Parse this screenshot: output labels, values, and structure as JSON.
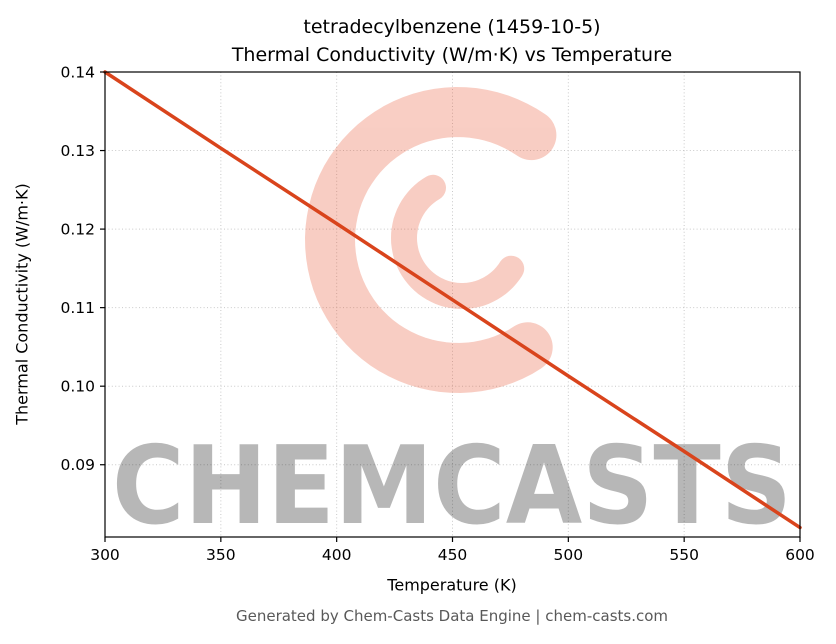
{
  "chart_data": {
    "type": "line",
    "title": "tetradecylbenzene (1459-10-5)",
    "subtitle": "Thermal Conductivity (W/m·K) vs Temperature",
    "xlabel": "Temperature (K)",
    "ylabel": "Thermal Conductivity (W/m·K)",
    "x": [
      300,
      350,
      400,
      450,
      500,
      550,
      600
    ],
    "y": [
      0.14,
      0.1303,
      0.1207,
      0.111,
      0.1013,
      0.0917,
      0.082
    ],
    "xlim": [
      300,
      600
    ],
    "ylim": [
      0.0808,
      0.14
    ],
    "x_ticks": [
      300,
      350,
      400,
      450,
      500,
      550,
      600
    ],
    "y_ticks": [
      0.09,
      0.1,
      0.11,
      0.12,
      0.13,
      0.14
    ],
    "line_color": "#d9441c",
    "grid": true,
    "grid_color": "#c9c9c9",
    "legend": "none"
  },
  "watermark": {
    "text": "CHEMCASTS",
    "color": "#e8502a",
    "opacity": 0.28
  },
  "footer": {
    "text": "Generated by Chem-Casts Data Engine | chem-casts.com"
  }
}
